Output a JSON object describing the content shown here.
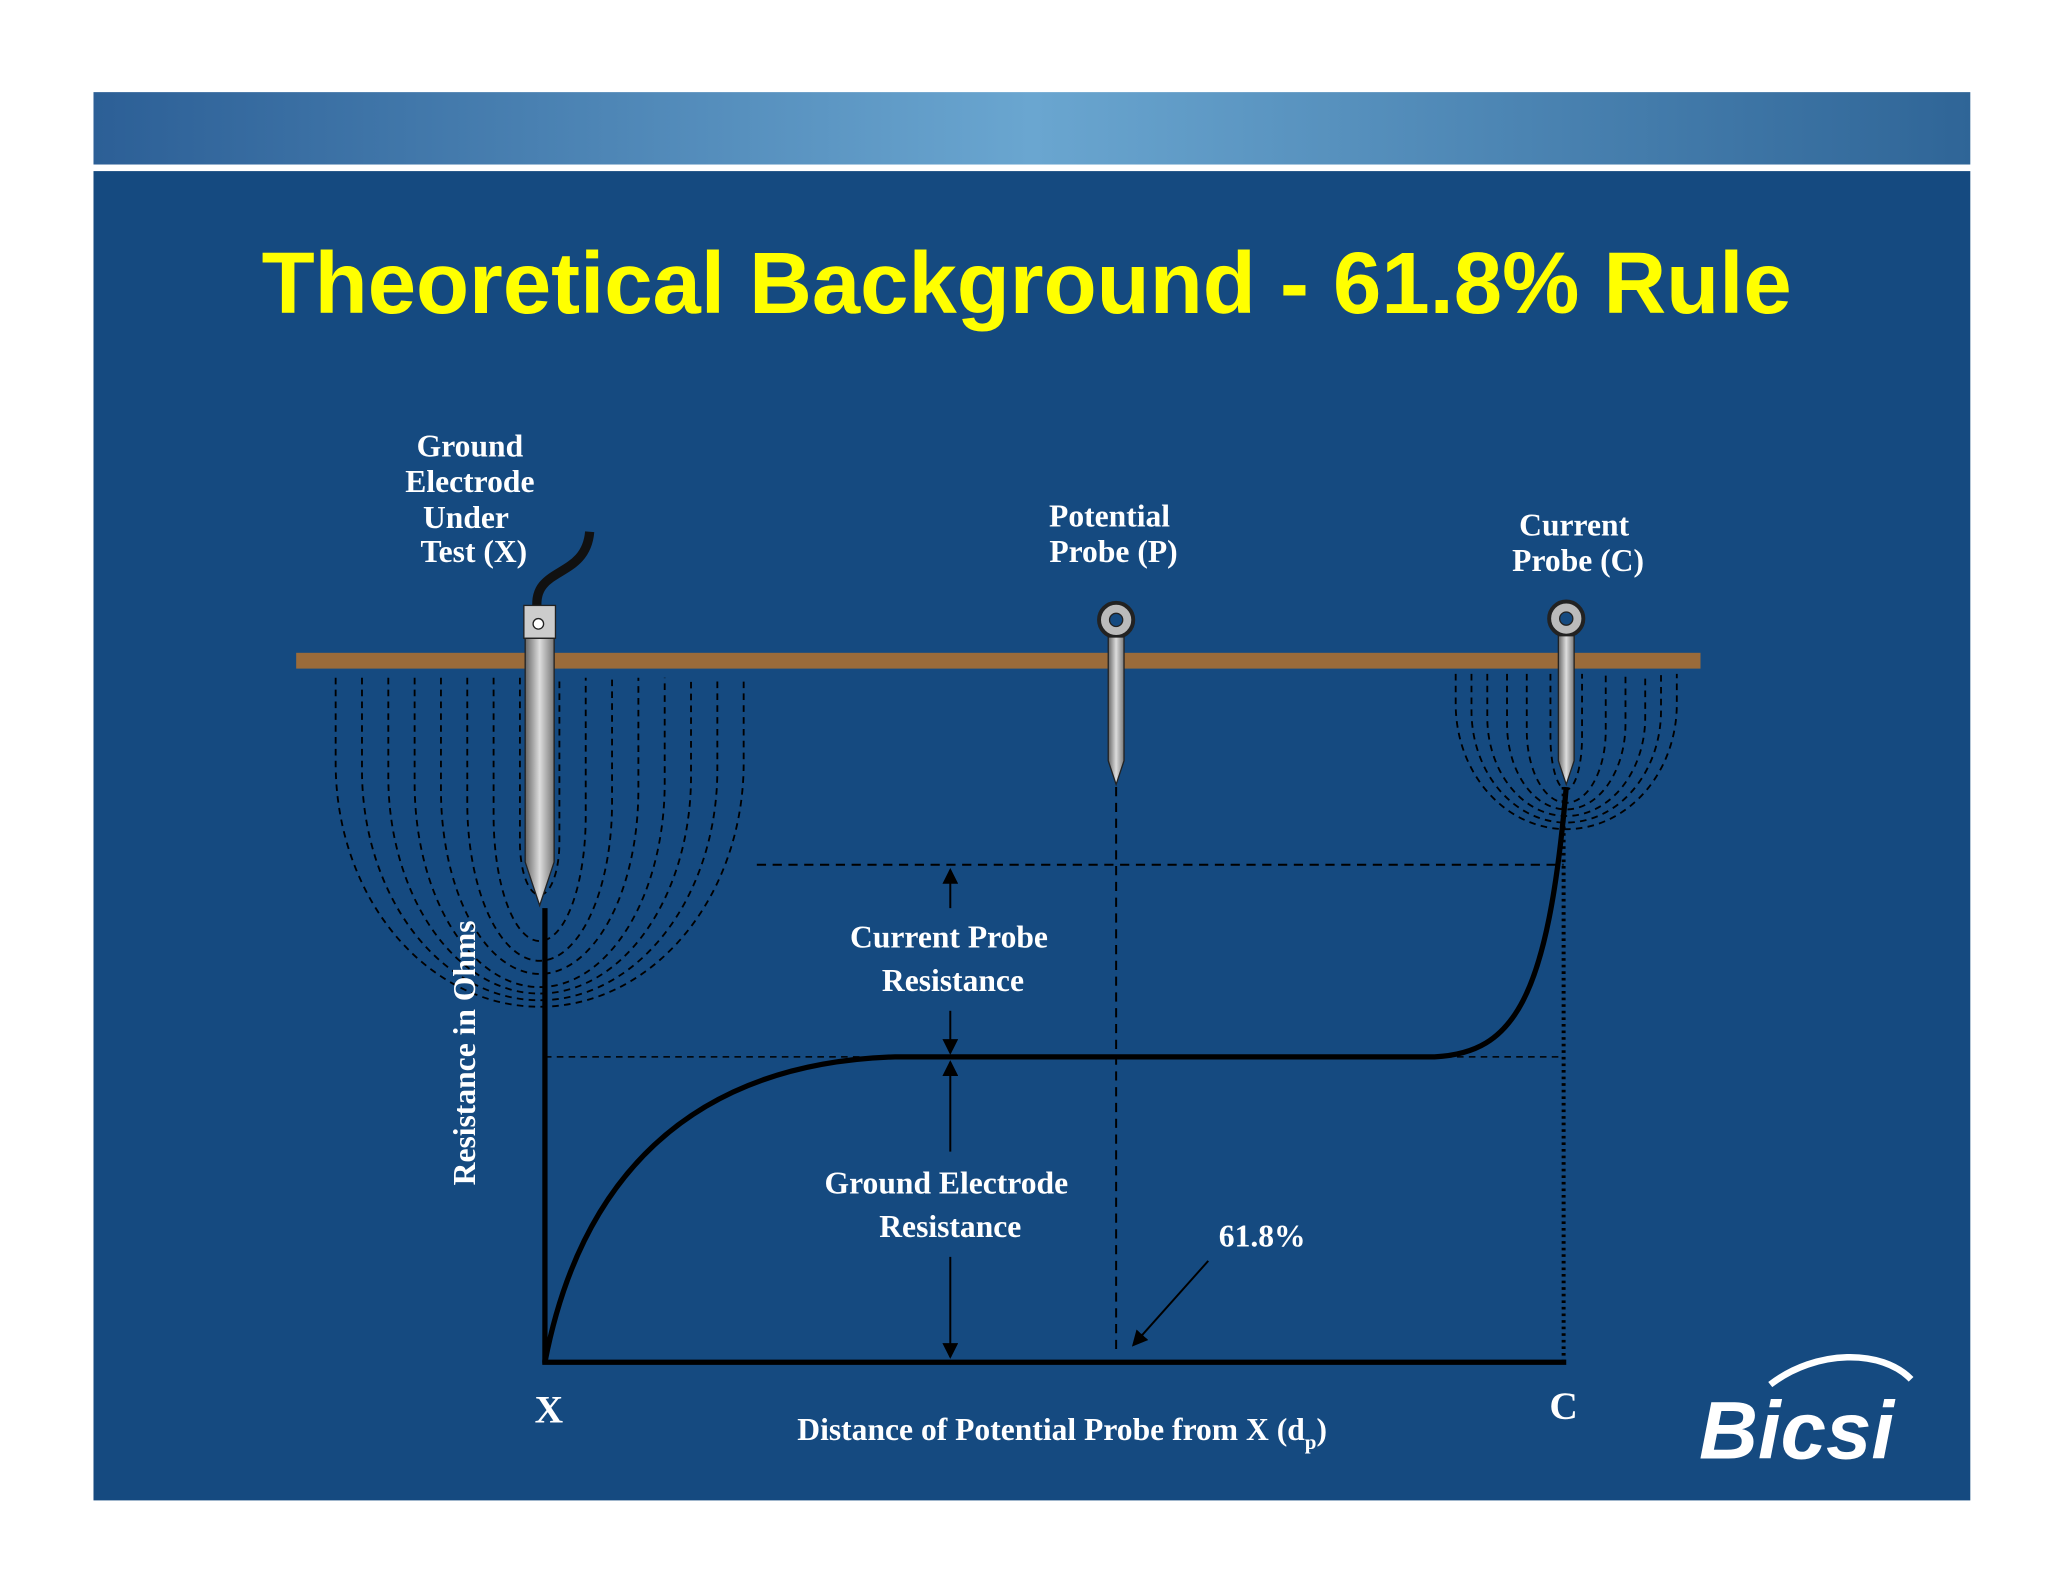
{
  "header": {
    "title": "Theoretical Background - 61.8% Rule"
  },
  "diagram": {
    "electrode_label": [
      "Ground",
      "Electrode",
      "Under",
      "Test (X)"
    ],
    "potential_probe_label": [
      "Potential",
      "Probe (P)"
    ],
    "current_probe_label": [
      "Current",
      "Probe (C)"
    ],
    "current_probe_resistance": [
      "Current Probe",
      "Resistance"
    ],
    "ground_electrode_resistance": [
      "Ground Electrode",
      "Resistance"
    ],
    "percent_label": "61.8%",
    "y_axis_label": "Resistance in Ohms",
    "x_origin": "X",
    "x_end": "C",
    "x_axis_label": {
      "text": "Distance of Potential Probe from X (d",
      "subscript": "p",
      "closing": ")"
    }
  },
  "logo": {
    "text": "Bicsi"
  }
}
